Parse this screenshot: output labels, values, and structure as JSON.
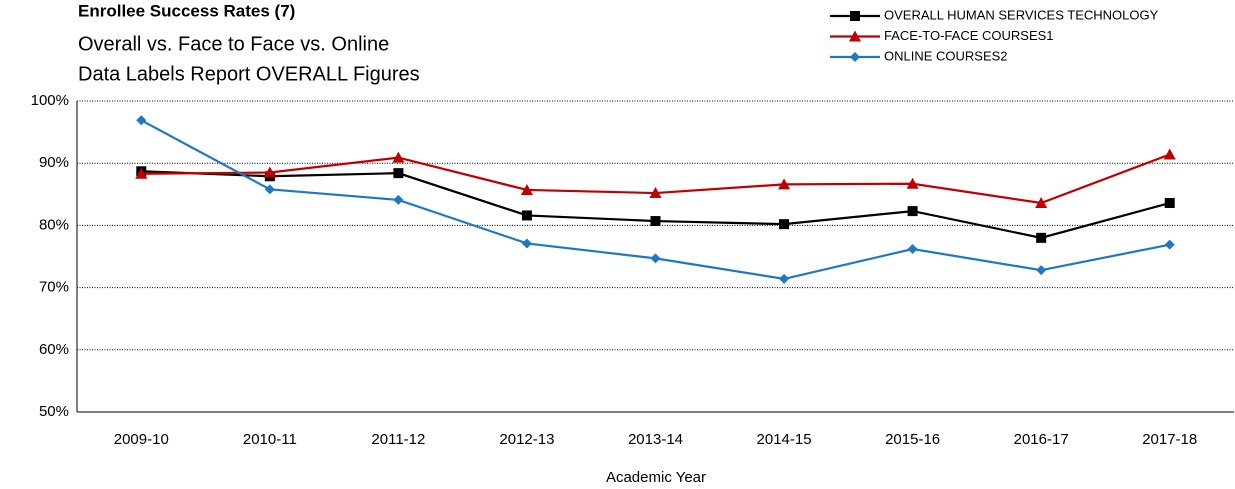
{
  "chart_data": {
    "type": "line",
    "title": "Enrollee Success Rates (7)",
    "subtitle": [
      "Overall vs. Face to Face vs. Online",
      "Data Labels Report OVERALL Figures"
    ],
    "x_label": "Academic Year",
    "categories": [
      "2009-10",
      "2010-11",
      "2011-12",
      "2012-13",
      "2013-14",
      "2014-15",
      "2015-16",
      "2016-17",
      "2017-18"
    ],
    "series": [
      {
        "name": "OVERALL HUMAN SERVICES TECHNOLOGY",
        "color": "#000000",
        "marker": "square",
        "values": [
          88.7,
          87.9,
          88.4,
          81.6,
          80.7,
          80.2,
          82.3,
          78.0,
          83.6
        ]
      },
      {
        "name": "FACE-TO-FACE COURSES1",
        "color": "#c00000",
        "marker": "triangle",
        "values": [
          88.3,
          88.5,
          90.9,
          85.7,
          85.2,
          86.6,
          86.7,
          83.6,
          91.4
        ]
      },
      {
        "name": "ONLINE COURSES2",
        "color": "#1f78c1",
        "marker": "diamond",
        "values": [
          96.9,
          85.8,
          84.1,
          77.1,
          74.7,
          71.4,
          76.2,
          72.8,
          76.9
        ]
      }
    ],
    "ylim": [
      50,
      100
    ],
    "yticks": [
      {
        "value": 50,
        "label": "50%"
      },
      {
        "value": 60,
        "label": "60%"
      },
      {
        "value": 70,
        "label": "70%"
      },
      {
        "value": 80,
        "label": "80%"
      },
      {
        "value": 90,
        "label": "90%"
      },
      {
        "value": 100,
        "label": "100%"
      }
    ],
    "grid": true,
    "legend": "top-right"
  }
}
